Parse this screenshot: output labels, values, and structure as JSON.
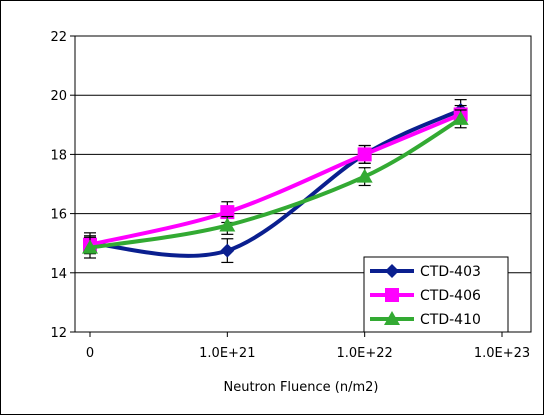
{
  "chart_data": {
    "type": "line",
    "xlabel": "Neutron Fluence (n/m2)",
    "ylabel": "",
    "ylim": [
      12,
      22
    ],
    "yticks": [
      12,
      14,
      16,
      18,
      20,
      22
    ],
    "xscale": "log",
    "xticks": [
      "0",
      "1.0E+21",
      "1.0E+22",
      "1.0E+23"
    ],
    "grid": "horizontal",
    "legend": "bottom-right",
    "x": [
      "0",
      "1.0E+21",
      "1.0E+22",
      "5.0E+22"
    ],
    "series": [
      {
        "name": "CTD-403",
        "color": "#0a1f8f",
        "marker": "diamond",
        "values": [
          15.0,
          14.75,
          18.0,
          19.5
        ],
        "error": [
          0.35,
          0.4,
          0.3,
          0.35
        ]
      },
      {
        "name": "CTD-406",
        "color": "#ff00ff",
        "marker": "square",
        "values": [
          14.95,
          16.05,
          18.0,
          19.35
        ],
        "error": [
          0.3,
          0.35,
          0.3,
          0.3
        ]
      },
      {
        "name": "CTD-410",
        "color": "#33aa33",
        "marker": "triangle",
        "values": [
          14.85,
          15.6,
          17.25,
          19.2
        ],
        "error": [
          0.35,
          0.3,
          0.3,
          0.3
        ]
      }
    ]
  }
}
